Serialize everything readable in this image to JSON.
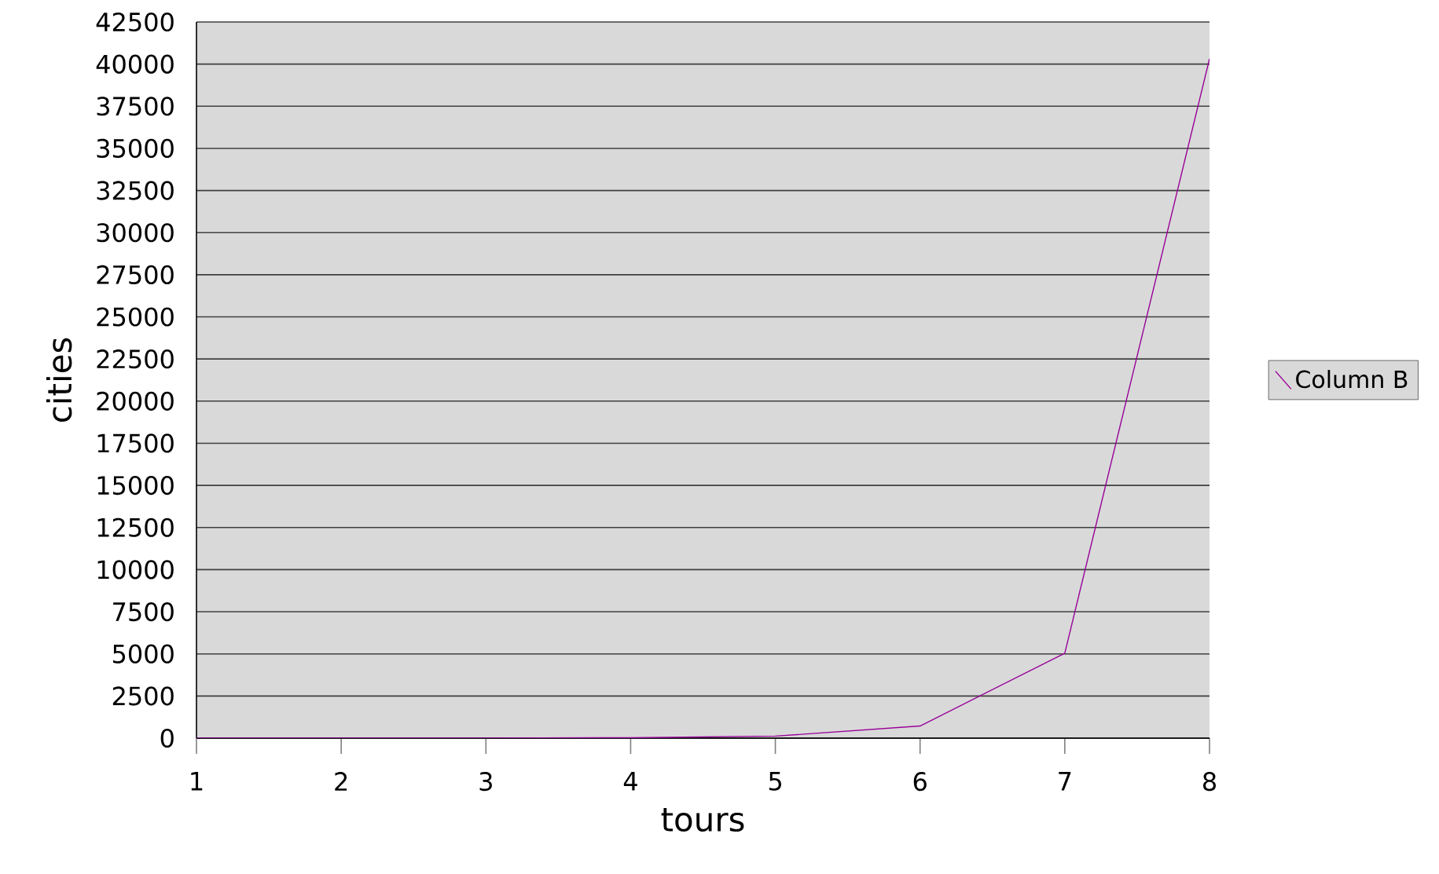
{
  "chart_data": {
    "type": "line",
    "xlabel": "tours",
    "ylabel": "cities",
    "x": [
      1,
      2,
      3,
      4,
      5,
      6,
      7,
      8
    ],
    "series": [
      {
        "name": "Column B",
        "color": "#990099",
        "values": [
          1,
          2,
          6,
          24,
          120,
          720,
          5040,
          40320
        ]
      }
    ],
    "xlim": [
      1,
      8
    ],
    "xticks": [
      1,
      2,
      3,
      4,
      5,
      6,
      7,
      8
    ],
    "ylim": [
      0,
      42500
    ],
    "yticks": [
      0,
      2500,
      5000,
      7500,
      10000,
      12500,
      15000,
      17500,
      20000,
      22500,
      25000,
      27500,
      30000,
      32500,
      35000,
      37500,
      40000,
      42500
    ],
    "grid": "y",
    "legend": "right",
    "marker": "none",
    "line_style": "solid"
  }
}
